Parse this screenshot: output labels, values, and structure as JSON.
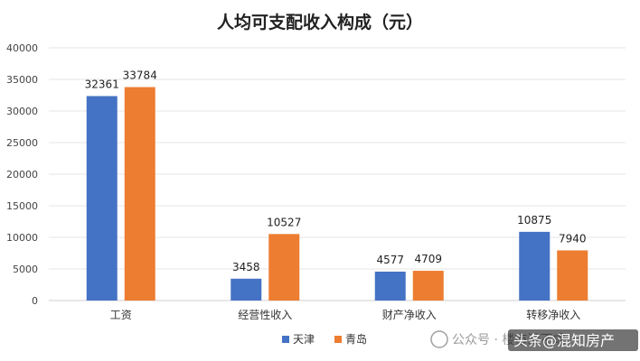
{
  "chart_data": {
    "type": "bar",
    "title": "人均可支配收入构成（元）",
    "categories": [
      "工资",
      "经营性收入",
      "财产净收入",
      "转移净收入"
    ],
    "series": [
      {
        "name": "天津",
        "color": "#4472c4",
        "values": [
          32361,
          3458,
          4577,
          10875
        ]
      },
      {
        "name": "青岛",
        "color": "#ed7d31",
        "values": [
          33784,
          10527,
          4709,
          7940
        ]
      }
    ],
    "ylim": [
      0,
      40000
    ],
    "yticks": [
      0,
      5000,
      10000,
      15000,
      20000,
      25000,
      30000,
      35000,
      40000
    ],
    "grid": true,
    "legend_position": "bottom-center"
  },
  "watermark": {
    "platform_text": "公众号 · 楼市没不成",
    "account_text": "头条@混知房产"
  }
}
